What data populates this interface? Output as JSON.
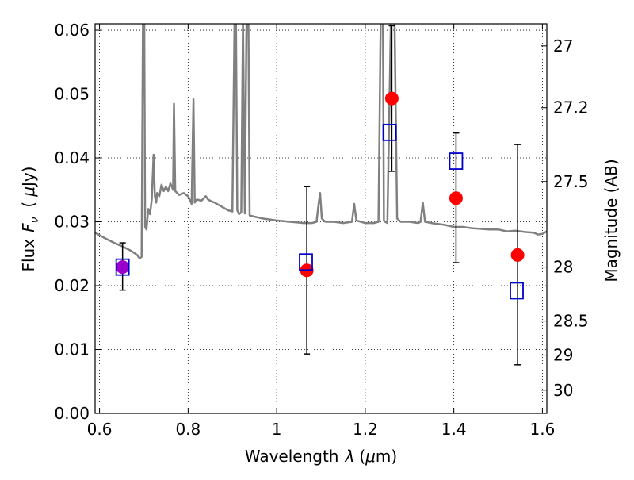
{
  "chart_data": {
    "type": "scatter",
    "xlabel_text": "Wavelength",
    "xlabel_symbol": "λ",
    "xlabel_unit_open": "(",
    "xlabel_unit_mu": "μ",
    "xlabel_unit_rest": "m)",
    "ylabel_text": "Flux",
    "ylabel_symbol": "F",
    "ylabel_sub": "ν",
    "ylabel_unit_open": "(",
    "ylabel_unit_mu": "μ",
    "ylabel_unit_rest": "Jy)",
    "y2label": "Magnitude (AB)",
    "xlim": [
      0.59,
      1.61
    ],
    "ylim": [
      0.0,
      0.061
    ],
    "xticks": [
      {
        "value": 0.6,
        "label": "0.6"
      },
      {
        "value": 0.8,
        "label": "0.8"
      },
      {
        "value": 1.0,
        "label": "1"
      },
      {
        "value": 1.2,
        "label": "1.2"
      },
      {
        "value": 1.4,
        "label": "1.4"
      },
      {
        "value": 1.6,
        "label": "1.6"
      }
    ],
    "yticks": [
      {
        "value": 0.0,
        "label": "0.00"
      },
      {
        "value": 0.01,
        "label": "0.01"
      },
      {
        "value": 0.02,
        "label": "0.02"
      },
      {
        "value": 0.03,
        "label": "0.03"
      },
      {
        "value": 0.04,
        "label": "0.04"
      },
      {
        "value": 0.05,
        "label": "0.05"
      },
      {
        "value": 0.06,
        "label": "0.06"
      }
    ],
    "y2ticks": [
      {
        "mag": 27,
        "label": "27"
      },
      {
        "mag": 27.2,
        "label": "27.2"
      },
      {
        "mag": 27.5,
        "label": "27.5"
      },
      {
        "mag": 28,
        "label": "28"
      },
      {
        "mag": 28.5,
        "label": "28.5"
      },
      {
        "mag": 29,
        "label": "29"
      },
      {
        "mag": 30,
        "label": "30"
      }
    ],
    "grid": true,
    "colors": {
      "spectrum": "#808080",
      "observed": "#ff0000",
      "model_box": "#0000cc",
      "highlight": "#9900cc",
      "errorbar": "#000000",
      "grid": "#000000"
    },
    "series": [
      {
        "name": "model spectrum",
        "kind": "line",
        "points": [
          [
            0.59,
            0.0283
          ],
          [
            0.61,
            0.0275
          ],
          [
            0.63,
            0.0268
          ],
          [
            0.65,
            0.0262
          ],
          [
            0.67,
            0.0255
          ],
          [
            0.685,
            0.0248
          ],
          [
            0.69,
            0.0243
          ],
          [
            0.695,
            0.0245
          ],
          [
            0.698,
            0.062
          ],
          [
            0.701,
            0.062
          ],
          [
            0.703,
            0.0292
          ],
          [
            0.706,
            0.0288
          ],
          [
            0.71,
            0.032
          ],
          [
            0.714,
            0.0312
          ],
          [
            0.718,
            0.0335
          ],
          [
            0.722,
            0.0405
          ],
          [
            0.725,
            0.034
          ],
          [
            0.728,
            0.033
          ],
          [
            0.73,
            0.0345
          ],
          [
            0.735,
            0.034
          ],
          [
            0.74,
            0.0358
          ],
          [
            0.745,
            0.0348
          ],
          [
            0.75,
            0.0355
          ],
          [
            0.755,
            0.0348
          ],
          [
            0.76,
            0.036
          ],
          [
            0.766,
            0.035
          ],
          [
            0.768,
            0.0485
          ],
          [
            0.771,
            0.0348
          ],
          [
            0.78,
            0.0342
          ],
          [
            0.79,
            0.0345
          ],
          [
            0.8,
            0.034
          ],
          [
            0.808,
            0.0328
          ],
          [
            0.812,
            0.0492
          ],
          [
            0.815,
            0.033
          ],
          [
            0.82,
            0.0335
          ],
          [
            0.83,
            0.0333
          ],
          [
            0.84,
            0.034
          ],
          [
            0.845,
            0.0335
          ],
          [
            0.85,
            0.0333
          ],
          [
            0.86,
            0.033
          ],
          [
            0.87,
            0.0326
          ],
          [
            0.88,
            0.0322
          ],
          [
            0.89,
            0.0318
          ],
          [
            0.9,
            0.0316
          ],
          [
            0.905,
            0.062
          ],
          [
            0.908,
            0.062
          ],
          [
            0.911,
            0.0318
          ],
          [
            0.915,
            0.0312
          ],
          [
            0.92,
            0.0315
          ],
          [
            0.924,
            0.062
          ],
          [
            0.928,
            0.0313
          ],
          [
            0.932,
            0.062
          ],
          [
            0.936,
            0.062
          ],
          [
            0.939,
            0.031
          ],
          [
            0.95,
            0.0308
          ],
          [
            0.97,
            0.0305
          ],
          [
            1.0,
            0.0302
          ],
          [
            1.03,
            0.03
          ],
          [
            1.06,
            0.0298
          ],
          [
            1.08,
            0.0298
          ],
          [
            1.09,
            0.03
          ],
          [
            1.095,
            0.033
          ],
          [
            1.098,
            0.0345
          ],
          [
            1.102,
            0.0305
          ],
          [
            1.11,
            0.03
          ],
          [
            1.13,
            0.03
          ],
          [
            1.15,
            0.0298
          ],
          [
            1.17,
            0.03
          ],
          [
            1.175,
            0.0328
          ],
          [
            1.18,
            0.0302
          ],
          [
            1.19,
            0.03
          ],
          [
            1.2,
            0.0298
          ],
          [
            1.22,
            0.0298
          ],
          [
            1.23,
            0.03
          ],
          [
            1.235,
            0.062
          ],
          [
            1.24,
            0.062
          ],
          [
            1.242,
            0.0302
          ],
          [
            1.245,
            0.03
          ],
          [
            1.25,
            0.0298
          ],
          [
            1.258,
            0.062
          ],
          [
            1.266,
            0.062
          ],
          [
            1.272,
            0.0305
          ],
          [
            1.28,
            0.03
          ],
          [
            1.3,
            0.03
          ],
          [
            1.32,
            0.0298
          ],
          [
            1.325,
            0.03
          ],
          [
            1.33,
            0.033
          ],
          [
            1.335,
            0.03
          ],
          [
            1.35,
            0.0298
          ],
          [
            1.38,
            0.0295
          ],
          [
            1.4,
            0.0292
          ],
          [
            1.42,
            0.0292
          ],
          [
            1.44,
            0.029
          ],
          [
            1.46,
            0.0289
          ],
          [
            1.48,
            0.0288
          ],
          [
            1.5,
            0.0288
          ],
          [
            1.52,
            0.0285
          ],
          [
            1.54,
            0.0286
          ],
          [
            1.56,
            0.0284
          ],
          [
            1.58,
            0.0283
          ],
          [
            1.59,
            0.028
          ],
          [
            1.6,
            0.0281
          ],
          [
            1.61,
            0.0285
          ]
        ]
      },
      {
        "name": "observed photometry",
        "kind": "points_with_errors",
        "points": [
          {
            "x": 0.652,
            "y": 0.0229,
            "ylo": 0.0193,
            "yhi": 0.0267
          },
          {
            "x": 1.068,
            "y": 0.0224,
            "ylo": 0.0093,
            "yhi": 0.0355
          },
          {
            "x": 1.26,
            "y": 0.0493,
            "ylo": 0.0379,
            "yhi": 0.0607
          },
          {
            "x": 1.405,
            "y": 0.0337,
            "ylo": 0.0236,
            "yhi": 0.0439
          },
          {
            "x": 1.544,
            "y": 0.0248,
            "ylo": 0.0076,
            "yhi": 0.0421
          }
        ]
      },
      {
        "name": "model photometry",
        "kind": "open_squares",
        "points": [
          {
            "x": 0.652,
            "y": 0.0229
          },
          {
            "x": 1.066,
            "y": 0.0237
          },
          {
            "x": 1.255,
            "y": 0.044
          },
          {
            "x": 1.405,
            "y": 0.0395
          },
          {
            "x": 1.542,
            "y": 0.0192
          }
        ]
      }
    ]
  }
}
